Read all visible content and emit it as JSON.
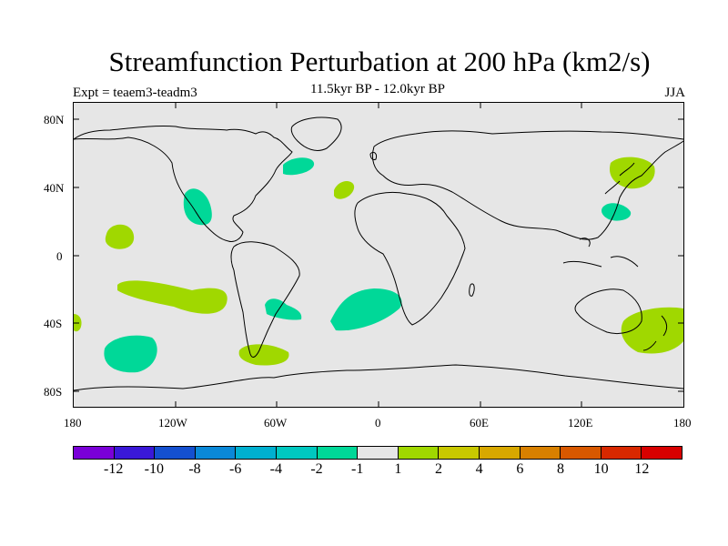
{
  "title": "Streamfunction Perturbation at 200 hPa (km2/s)",
  "expt": "Expt = teaem3-teadm3",
  "period": "11.5kyr BP - 12.0kyr BP",
  "season": "JJA",
  "map": {
    "lat_ticks": [
      "80N",
      "40N",
      "0",
      "40S",
      "80S"
    ],
    "lon_ticks": [
      "180",
      "120W",
      "60W",
      "0",
      "60E",
      "120E",
      "180"
    ],
    "background_color": "#e6e6e6",
    "coastline_color": "#000000"
  },
  "colorbar": {
    "colors": [
      "#7a00d8",
      "#3a18d8",
      "#1450d0",
      "#0a88d8",
      "#00b0d0",
      "#00c8c0",
      "#00d898",
      "#e6e6e6",
      "#a0d800",
      "#c8c800",
      "#d8a800",
      "#d88000",
      "#d85800",
      "#d82800",
      "#d80000"
    ],
    "labels": [
      "-12",
      "-10",
      "-8",
      "-6",
      "-4",
      "-2",
      "-1",
      "1",
      "2",
      "4",
      "6",
      "8",
      "10",
      "12"
    ]
  },
  "anomalies": [
    {
      "level": "-1",
      "lon": -50,
      "lat": 45
    },
    {
      "level": "2",
      "lon": -17,
      "lat": 37
    },
    {
      "level": "-1",
      "lon": -110,
      "lat": 32
    },
    {
      "level": "2",
      "lon": -147,
      "lat": 10
    },
    {
      "level": "2",
      "lon": -125,
      "lat": -25
    },
    {
      "level": "-1",
      "lon": -65,
      "lat": -30
    },
    {
      "level": "-1",
      "lon": 0,
      "lat": -30
    },
    {
      "level": "-1",
      "lon": -148,
      "lat": -58
    },
    {
      "level": "2",
      "lon": -72,
      "lat": -58
    },
    {
      "level": "2",
      "lon": -178,
      "lat": -38
    },
    {
      "level": "2",
      "lon": 155,
      "lat": 48
    },
    {
      "level": "-1",
      "lon": 140,
      "lat": 25
    },
    {
      "level": "2",
      "lon": 165,
      "lat": -42
    }
  ]
}
